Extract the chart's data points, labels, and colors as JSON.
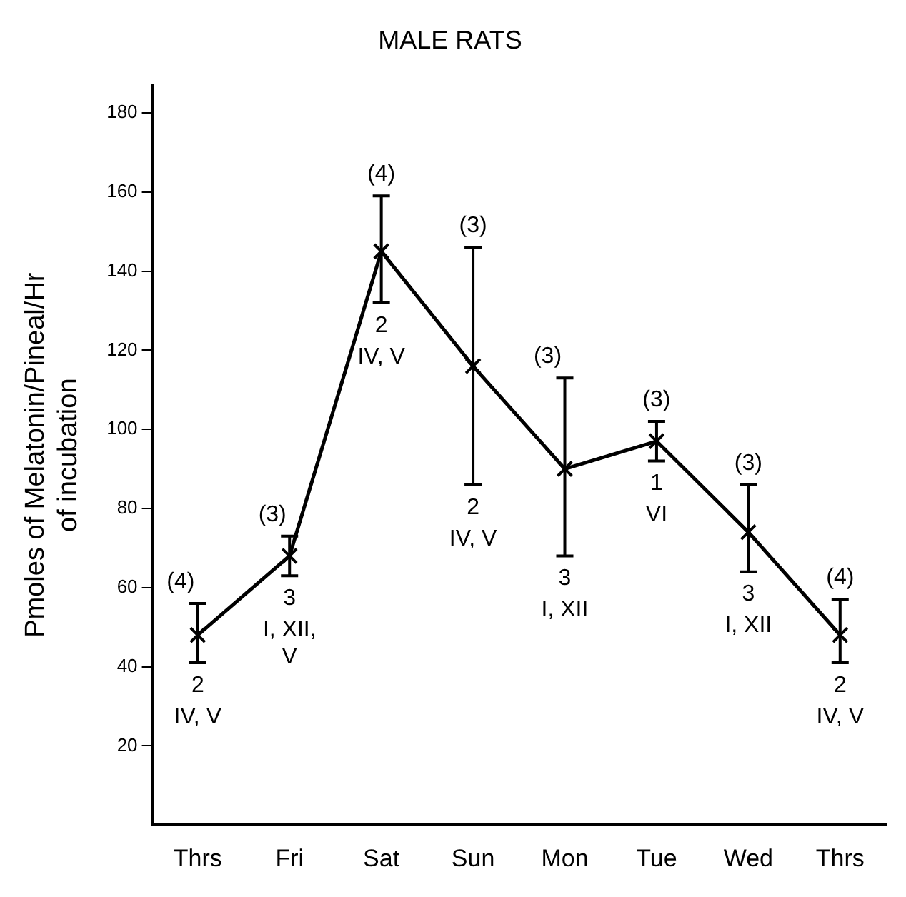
{
  "chart_data": {
    "type": "line",
    "title": "MALE RATS",
    "ylabel": "Pmoles of Melatonin/Pineal/Hr\nof incubation",
    "categories": [
      "Thrs",
      "Fri",
      "Sat",
      "Sun",
      "Mon",
      "Tue",
      "Wed",
      "Thrs"
    ],
    "series": [
      {
        "color": "#000000",
        "values": [
          48,
          68,
          145,
          116,
          90,
          97,
          74,
          48
        ],
        "errors": [
          [
            41,
            56
          ],
          [
            63,
            73
          ],
          [
            132,
            159
          ],
          [
            86,
            146
          ],
          [
            68,
            113
          ],
          [
            92,
            102
          ],
          [
            64,
            86
          ],
          [
            41,
            57
          ]
        ]
      }
    ],
    "ylim": [
      0,
      187
    ],
    "yticks": [
      20,
      40,
      60,
      80,
      100,
      120,
      140,
      160,
      180
    ],
    "grid": false,
    "legend": false,
    "marker": "cross",
    "line_style": "solid",
    "annotations": [
      "(4)",
      "2",
      "IV, V",
      "(3)",
      "3",
      "I, XII,\nV",
      "(4)",
      "2",
      "IV, V",
      "(3)",
      "2",
      "IV, V",
      "(3)",
      "3",
      "I, XII",
      "(3)",
      "1",
      "VI",
      "(3)",
      "3",
      "I, XII",
      "(4)",
      "2",
      "IV, V"
    ]
  }
}
